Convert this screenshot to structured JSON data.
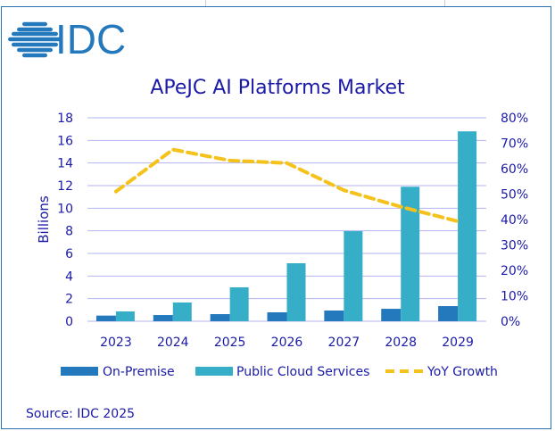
{
  "logo_text": "IDC",
  "source": "Source: IDC 2025",
  "colors": {
    "on_premise": "#2479bd",
    "cloud": "#37aec8",
    "yoy": "#f5c21b",
    "text": "#1a1aa6",
    "grid": "#b3b3f0",
    "logo": "#2479bd"
  },
  "chart_data": {
    "type": "bar+line",
    "title": "APeJC AI Platforms Market",
    "ylabel": "Billions",
    "ylim": [
      0,
      18
    ],
    "y_ticks": [
      "0",
      "2",
      "4",
      "6",
      "8",
      "10",
      "12",
      "14",
      "16",
      "18"
    ],
    "y2lim": [
      0,
      80
    ],
    "y2_ticks": [
      "0%",
      "10%",
      "20%",
      "30%",
      "40%",
      "50%",
      "60%",
      "70%",
      "80%"
    ],
    "categories": [
      "2023",
      "2024",
      "2025",
      "2026",
      "2027",
      "2028",
      "2029"
    ],
    "series": [
      {
        "name": "On-Premise",
        "type": "bar",
        "values": [
          0.5,
          0.55,
          0.63,
          0.79,
          0.95,
          1.1,
          1.34
        ]
      },
      {
        "name": "Public Cloud Services",
        "type": "bar",
        "values": [
          0.87,
          1.66,
          3.0,
          5.13,
          7.97,
          11.9,
          16.8
        ]
      },
      {
        "name": "YoY Growth",
        "type": "line",
        "axis": "right",
        "values": [
          51,
          67.5,
          63.2,
          62.2,
          51.5,
          45,
          39.3
        ]
      }
    ],
    "legend_position": "bottom",
    "grid": true
  }
}
